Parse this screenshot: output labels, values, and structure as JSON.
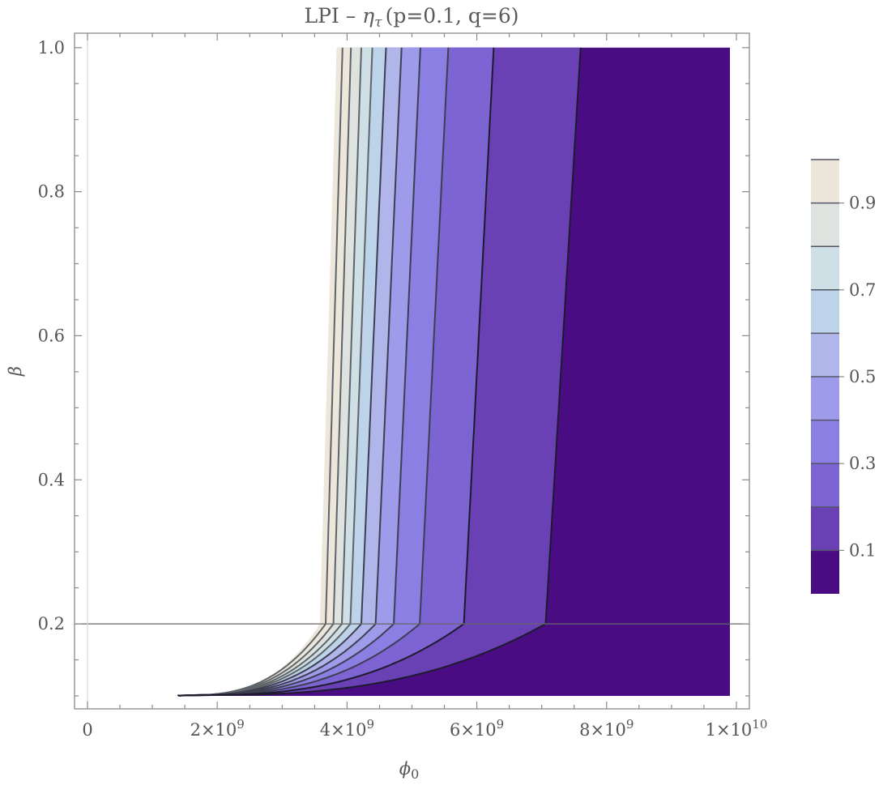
{
  "chart_data": {
    "type": "contour",
    "title": {
      "prefix": "LPI – ",
      "symbol": "η",
      "symbol_sub": "τ",
      "params": "(p=0.1, q=6)"
    },
    "xlabel": {
      "symbol": "ϕ",
      "sub": "0"
    },
    "ylabel": "β",
    "xlim": [
      -200000000.0,
      10200000000.0
    ],
    "ylim": [
      0.082,
      1.02
    ],
    "x_ticks": [
      {
        "value": 0,
        "mantissa": "0",
        "exponent": ""
      },
      {
        "value": 2000000000.0,
        "mantissa": "2×10",
        "exponent": "9"
      },
      {
        "value": 4000000000.0,
        "mantissa": "4×10",
        "exponent": "9"
      },
      {
        "value": 6000000000.0,
        "mantissa": "6×10",
        "exponent": "9"
      },
      {
        "value": 8000000000.0,
        "mantissa": "8×10",
        "exponent": "9"
      },
      {
        "value": 10000000000.0,
        "mantissa": "1×10",
        "exponent": "10"
      }
    ],
    "y_ticks": [
      {
        "value": 0.2,
        "label": "0.2"
      },
      {
        "value": 0.4,
        "label": "0.4"
      },
      {
        "value": 0.6,
        "label": "0.6"
      },
      {
        "value": 0.8,
        "label": "0.8"
      },
      {
        "value": 1.0,
        "label": "1.0"
      }
    ],
    "domain": {
      "x": [
        0,
        9900000000.0
      ],
      "y": [
        0.1,
        1.0
      ]
    },
    "reference_lines": {
      "horizontal_beta": 0.2,
      "vertical_phi0": 0
    },
    "contour_levels": [
      0.05,
      0.15,
      0.25,
      0.35,
      0.45,
      0.55,
      0.65,
      0.75,
      0.85,
      0.95
    ],
    "contours": [
      {
        "level": 0.95,
        "phi0_at_beta_1": 3930000000.0,
        "phi0_at_beta_0_2": 3670000000.0
      },
      {
        "level": 0.85,
        "phi0_at_beta_1": 4060000000.0,
        "phi0_at_beta_0_2": 3790000000.0
      },
      {
        "level": 0.75,
        "phi0_at_beta_1": 4220000000.0,
        "phi0_at_beta_0_2": 3920000000.0
      },
      {
        "level": 0.65,
        "phi0_at_beta_1": 4390000000.0,
        "phi0_at_beta_0_2": 4050000000.0
      },
      {
        "level": 0.55,
        "phi0_at_beta_1": 4600000000.0,
        "phi0_at_beta_0_2": 4220000000.0
      },
      {
        "level": 0.45,
        "phi0_at_beta_1": 4840000000.0,
        "phi0_at_beta_0_2": 4440000000.0
      },
      {
        "level": 0.35,
        "phi0_at_beta_1": 5130000000.0,
        "phi0_at_beta_0_2": 4720000000.0
      },
      {
        "level": 0.25,
        "phi0_at_beta_1": 5560000000.0,
        "phi0_at_beta_0_2": 5120000000.0
      },
      {
        "level": 0.15,
        "phi0_at_beta_1": 6260000000.0,
        "phi0_at_beta_0_2": 5800000000.0
      },
      {
        "level": 0.05,
        "phi0_at_beta_1": 7600000000.0,
        "phi0_at_beta_0_2": 7060000000.0
      }
    ],
    "low_beta_tail": {
      "beta": 0.1,
      "phi0_start": 1400000000.0
    },
    "colorbar": {
      "range": [
        0.0,
        1.0
      ],
      "tick_labels": [
        {
          "value": 0.1,
          "label": "0.1"
        },
        {
          "value": 0.3,
          "label": "0.3"
        },
        {
          "value": 0.5,
          "label": "0.5"
        },
        {
          "value": 0.7,
          "label": "0.7"
        },
        {
          "value": 0.9,
          "label": "0.9"
        }
      ],
      "colors": [
        "#4a0c83",
        "#6941b4",
        "#7c64d2",
        "#8c7fe3",
        "#9d9bea",
        "#b0b6ea",
        "#bdd3ea",
        "#cfdfe6",
        "#dfe3e0",
        "#ece6db"
      ]
    },
    "outside_domain_color": "#ffffff",
    "grid": false,
    "legend": "colorbar-right"
  }
}
